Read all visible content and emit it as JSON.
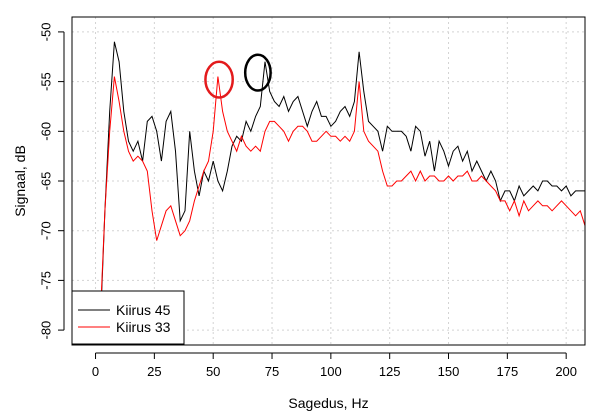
{
  "chart_data": {
    "type": "line",
    "title": "",
    "xlabel": "Sagedus, Hz",
    "ylabel": "Signaal, dB",
    "xlim": [
      -10,
      208
    ],
    "ylim": [
      -81.5,
      -48.5
    ],
    "xticks": [
      0,
      25,
      50,
      75,
      100,
      125,
      150,
      175,
      200
    ],
    "yticks": [
      -80,
      -75,
      -70,
      -65,
      -60,
      -55,
      -50
    ],
    "xtick_labels": [
      "0",
      "25",
      "50",
      "75",
      "100",
      "125",
      "150",
      "175",
      "200"
    ],
    "ytick_labels": [
      "-80",
      "-75",
      "-70",
      "-65",
      "-60",
      "-55",
      "-50"
    ],
    "grid": true,
    "legend_position": "bottom-left",
    "series": [
      {
        "name": "Kiirus 45",
        "color": "#000000",
        "x": [
          2,
          4,
          6,
          8,
          10,
          12,
          14,
          16,
          18,
          20,
          22,
          24,
          26,
          28,
          30,
          32,
          34,
          36,
          38,
          40,
          42,
          44,
          46,
          48,
          50,
          52,
          54,
          56,
          58,
          60,
          62,
          64,
          66,
          68,
          70,
          72,
          74,
          76,
          78,
          80,
          82,
          84,
          86,
          88,
          90,
          92,
          94,
          96,
          98,
          100,
          102,
          104,
          106,
          108,
          110,
          112,
          114,
          116,
          118,
          120,
          122,
          124,
          126,
          128,
          130,
          132,
          134,
          136,
          138,
          140,
          142,
          144,
          146,
          148,
          150,
          152,
          154,
          156,
          158,
          160,
          162,
          164,
          166,
          168,
          170,
          172,
          174,
          176,
          178,
          180,
          182,
          184,
          186,
          188,
          190,
          192,
          194,
          196,
          198,
          200,
          202,
          204,
          206,
          208
        ],
        "y": [
          -80,
          -68,
          -58,
          -51,
          -53,
          -58,
          -61,
          -62,
          -61,
          -63,
          -59,
          -58.5,
          -60,
          -63,
          -59,
          -58,
          -62,
          -69,
          -68,
          -60,
          -64,
          -66.5,
          -64,
          -65,
          -63,
          -65,
          -66,
          -64,
          -61.5,
          -60.5,
          -61,
          -59,
          -60,
          -58.5,
          -57.5,
          -53,
          -56,
          -57,
          -57.5,
          -56.5,
          -58,
          -57,
          -56.5,
          -58,
          -59.5,
          -58,
          -57,
          -58.5,
          -58.5,
          -59.5,
          -59,
          -58,
          -57.5,
          -58.5,
          -57,
          -52,
          -56,
          -59,
          -59.5,
          -60,
          -62,
          -59.5,
          -60,
          -60,
          -60,
          -60.5,
          -62,
          -59.5,
          -60,
          -62.5,
          -61,
          -64,
          -61,
          -62,
          -63.5,
          -62,
          -61.5,
          -63,
          -62,
          -64,
          -63,
          -64,
          -65,
          -64,
          -65,
          -67,
          -66,
          -66,
          -67,
          -65.5,
          -66.5,
          -66,
          -65.5,
          -66,
          -65,
          -65,
          -65.5,
          -65.5,
          -66,
          -65.5,
          -66.5,
          -66,
          -66,
          -66
        ]
      },
      {
        "name": "Kiirus 33",
        "color": "#ff0000",
        "x": [
          2,
          4,
          6,
          8,
          10,
          12,
          14,
          16,
          18,
          20,
          22,
          24,
          26,
          28,
          30,
          32,
          34,
          36,
          38,
          40,
          42,
          44,
          46,
          48,
          50,
          52,
          54,
          56,
          58,
          60,
          62,
          64,
          66,
          68,
          70,
          72,
          74,
          76,
          78,
          80,
          82,
          84,
          86,
          88,
          90,
          92,
          94,
          96,
          98,
          100,
          102,
          104,
          106,
          108,
          110,
          112,
          114,
          116,
          118,
          120,
          122,
          124,
          126,
          128,
          130,
          132,
          134,
          136,
          138,
          140,
          142,
          144,
          146,
          148,
          150,
          152,
          154,
          156,
          158,
          160,
          162,
          164,
          166,
          168,
          170,
          172,
          174,
          176,
          178,
          180,
          182,
          184,
          186,
          188,
          190,
          192,
          194,
          196,
          198,
          200,
          202,
          204,
          206,
          208
        ],
        "y": [
          -79,
          -68,
          -60,
          -54.5,
          -57,
          -60,
          -62,
          -63,
          -62.5,
          -63,
          -64,
          -68,
          -71,
          -69.5,
          -68,
          -67.5,
          -69,
          -70.5,
          -70,
          -69,
          -67,
          -65.5,
          -64,
          -63,
          -60,
          -54.5,
          -58,
          -60,
          -61,
          -62,
          -60.5,
          -61.5,
          -62,
          -61.5,
          -62,
          -60,
          -59,
          -59,
          -59.5,
          -60,
          -61,
          -60,
          -59.5,
          -59.5,
          -60,
          -61,
          -61,
          -60.5,
          -60,
          -60.5,
          -60.5,
          -61,
          -60.5,
          -61,
          -60,
          -55,
          -60,
          -61,
          -61.5,
          -62,
          -64,
          -65.5,
          -65.5,
          -65,
          -65,
          -64.5,
          -64,
          -65,
          -64,
          -65,
          -64.5,
          -64.5,
          -65,
          -65,
          -64.5,
          -65,
          -64.5,
          -64.5,
          -64,
          -65,
          -65,
          -64.5,
          -65,
          -65.5,
          -66,
          -67,
          -67,
          -68,
          -67,
          -68.5,
          -67,
          -68,
          -67.5,
          -67,
          -67.5,
          -67.5,
          -68,
          -67.5,
          -67,
          -67.5,
          -68,
          -68.5,
          -68,
          -69.5
        ]
      }
    ],
    "annotations": [
      {
        "shape": "ellipse",
        "color": "#e31a1c",
        "cx": 52.5,
        "cy": -54.8,
        "rx": 5.8,
        "ry": 1.8
      },
      {
        "shape": "ellipse",
        "color": "#000000",
        "cx": 69,
        "cy": -54.1,
        "rx": 5.4,
        "ry": 1.8
      }
    ]
  }
}
